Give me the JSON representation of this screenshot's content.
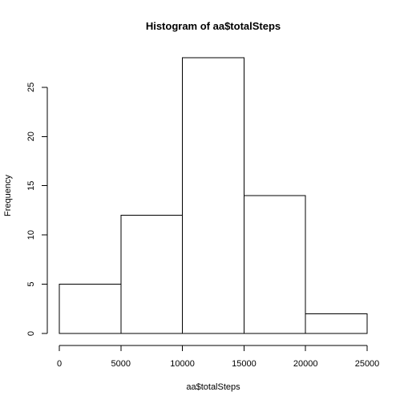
{
  "chart_data": {
    "type": "bar",
    "title": "Histogram of aa$totalSteps",
    "xlabel": "aa$totalSteps",
    "ylabel": "Frequency",
    "bins": [
      {
        "from": 0,
        "to": 5000,
        "count": 5
      },
      {
        "from": 5000,
        "to": 10000,
        "count": 12
      },
      {
        "from": 10000,
        "to": 15000,
        "count": 28
      },
      {
        "from": 15000,
        "to": 20000,
        "count": 14
      },
      {
        "from": 20000,
        "to": 25000,
        "count": 2
      }
    ],
    "xlim": [
      0,
      25000
    ],
    "ylim": [
      0,
      28
    ],
    "x_ticks": [
      0,
      5000,
      10000,
      15000,
      20000,
      25000
    ],
    "x_tick_labels": [
      "0",
      "5000",
      "10000",
      "15000",
      "20000",
      "25000"
    ],
    "y_ticks": [
      0,
      5,
      10,
      15,
      20,
      25
    ],
    "y_tick_labels": [
      "0",
      "5",
      "10",
      "15",
      "20",
      "25"
    ],
    "grid": false,
    "legend": "none",
    "colors": {
      "bar_fill": "#ffffff",
      "bar_stroke": "#000000",
      "text": "#000000"
    }
  }
}
